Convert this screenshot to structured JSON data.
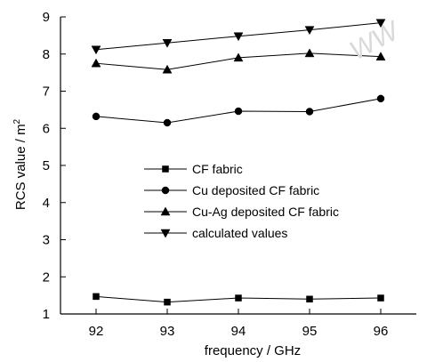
{
  "chart_data": {
    "type": "line",
    "xlabel": "frequency / GHz",
    "ylabel": "RCS value / m",
    "ylabel_superscript": "2",
    "x": [
      92,
      93,
      94,
      95,
      96
    ],
    "xlim": [
      91.5,
      96.5
    ],
    "ylim": [
      1,
      9
    ],
    "xticks": [
      "92",
      "93",
      "94",
      "95",
      "96"
    ],
    "yticks": [
      "1",
      "2",
      "3",
      "4",
      "5",
      "6",
      "7",
      "8",
      "9"
    ],
    "grid": false,
    "legend_position": "center-left",
    "series": [
      {
        "name": "CF fabric",
        "marker": "square",
        "values": [
          1.47,
          1.32,
          1.43,
          1.4,
          1.43
        ]
      },
      {
        "name": "Cu deposited CF fabric",
        "marker": "circle",
        "values": [
          6.32,
          6.15,
          6.46,
          6.45,
          6.8
        ]
      },
      {
        "name": "Cu-Ag deposited CF fabric",
        "marker": "triangle-up",
        "values": [
          7.75,
          7.58,
          7.9,
          8.02,
          7.93
        ]
      },
      {
        "name": "calculated values",
        "marker": "triangle-down",
        "values": [
          8.12,
          8.3,
          8.48,
          8.65,
          8.84
        ]
      }
    ],
    "watermark": "WW"
  }
}
